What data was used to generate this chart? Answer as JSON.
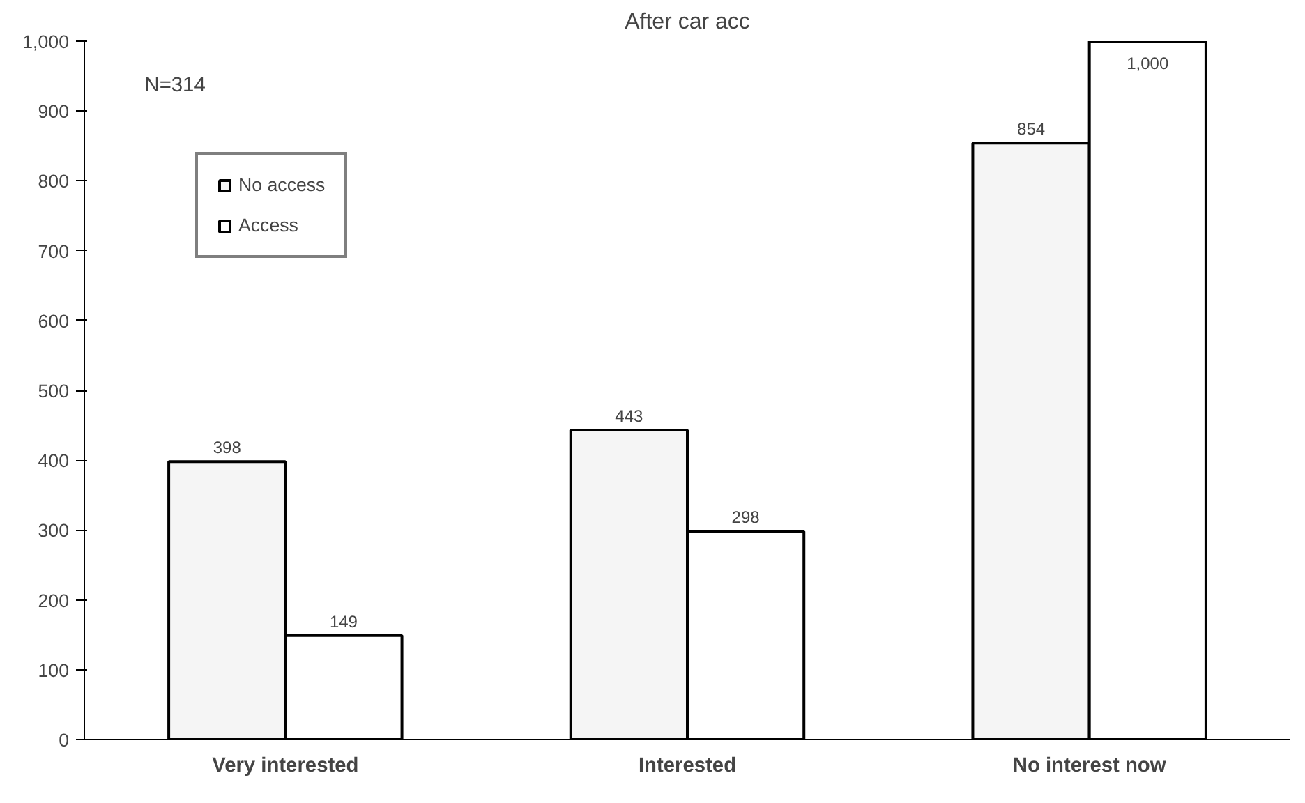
{
  "chart_data": {
    "type": "bar",
    "title": "After car acc",
    "categories": [
      "Very interested",
      "Interested",
      "No interest now"
    ],
    "series": [
      {
        "name": "No access",
        "color": "#f5f5f5",
        "values": [
          398,
          443,
          854
        ],
        "value_labels": [
          "398",
          "443",
          "854"
        ]
      },
      {
        "name": "Access",
        "color": "#ffffff",
        "values": [
          149,
          298,
          1000
        ],
        "value_labels": [
          "149",
          "298",
          "1,000"
        ]
      }
    ],
    "ylim": [
      0,
      1000
    ],
    "yticks": [
      0,
      {
        "value": 100,
        "label": "100"
      },
      200,
      300,
      400,
      500,
      600,
      700,
      800,
      900,
      {
        "value": 1000,
        "label": "1,000"
      }
    ],
    "legend": "top left",
    "grid": false,
    "annotations": [
      "N=314"
    ]
  }
}
